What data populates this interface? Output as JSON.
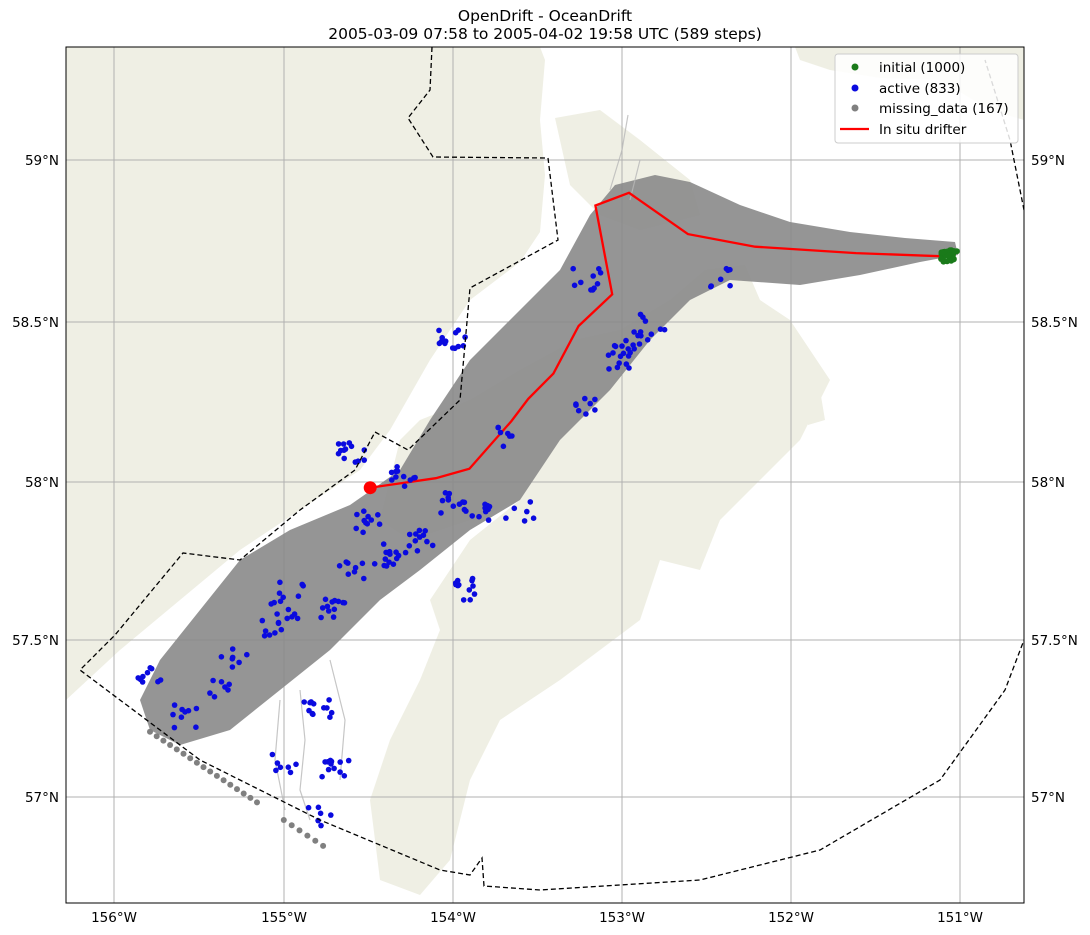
{
  "title": {
    "line1": "OpenDrift - OceanDrift",
    "line2": "2005-03-09 07:58 to 2005-04-02 19:58 UTC (589 steps)"
  },
  "axes": {
    "lon_labels": [
      "156°W",
      "155°W",
      "154°W",
      "153°W",
      "152°W",
      "151°W"
    ],
    "lat_labels": [
      "59°N",
      "58.5°N",
      "58°N",
      "57.5°N",
      "57°N"
    ]
  },
  "legend": {
    "location": "top-right",
    "items": [
      {
        "label": "initial (1000)",
        "color": "#1a7a1a",
        "kind": "marker"
      },
      {
        "label": "active (833)",
        "color": "#0a0adf",
        "kind": "marker"
      },
      {
        "label": "missing_data (167)",
        "color": "#808080",
        "kind": "marker"
      },
      {
        "label": "In situ drifter",
        "color": "#ff0000",
        "kind": "line"
      }
    ]
  },
  "colors": {
    "land": "#efefe4",
    "trajectories": "#a0a0a0",
    "initial": "#1a7a1a",
    "active": "#0a0adf",
    "missing": "#808080",
    "drifter": "#ff0000"
  },
  "chart_data": {
    "type": "scatter",
    "title": "OpenDrift - OceanDrift",
    "subtitle": "2005-03-09 07:58 to 2005-04-02 19:58 UTC (589 steps)",
    "xlim": [
      -156.3,
      -150.6
    ],
    "ylim": [
      56.68,
      59.38
    ],
    "grid": true,
    "series": [
      {
        "name": "initial (1000)",
        "center": [
          -151.05,
          58.72
        ]
      },
      {
        "name": "active (833)",
        "sample_points": [
          [
            -155.8,
            57.39
          ],
          [
            -155.6,
            57.27
          ],
          [
            -155.4,
            57.35
          ],
          [
            -155.3,
            57.45
          ],
          [
            -155.0,
            57.61
          ],
          [
            -155.05,
            57.56
          ],
          [
            -154.95,
            57.66
          ],
          [
            -154.7,
            57.6
          ],
          [
            -154.6,
            57.72
          ],
          [
            -154.4,
            57.78
          ],
          [
            -154.2,
            57.82
          ],
          [
            -154.5,
            57.88
          ],
          [
            -154.6,
            58.1
          ],
          [
            -154.3,
            58.03
          ],
          [
            -154.0,
            57.94
          ],
          [
            -153.8,
            57.9
          ],
          [
            -153.6,
            57.92
          ],
          [
            -153.9,
            57.67
          ],
          [
            -153.7,
            58.15
          ],
          [
            -153.2,
            58.25
          ],
          [
            -153.0,
            58.4
          ],
          [
            -152.9,
            58.45
          ],
          [
            -152.8,
            58.5
          ],
          [
            -154.0,
            58.45
          ],
          [
            -154.8,
            57.3
          ],
          [
            -154.7,
            57.1
          ],
          [
            -154.8,
            56.95
          ],
          [
            -155.0,
            57.12
          ],
          [
            -153.2,
            58.65
          ],
          [
            -152.4,
            58.65
          ]
        ]
      },
      {
        "name": "missing_data (167)",
        "edge_from": [
          -155.8,
          57.22
        ],
        "edge_to": [
          -154.77,
          56.86
        ]
      },
      {
        "name": "In situ drifter",
        "line": [
          [
            -151.1,
            58.72
          ],
          [
            -151.6,
            58.73
          ],
          [
            -152.2,
            58.75
          ],
          [
            -152.6,
            58.79
          ],
          [
            -152.95,
            58.92
          ],
          [
            -153.15,
            58.88
          ],
          [
            -153.05,
            58.6
          ],
          [
            -153.25,
            58.5
          ],
          [
            -153.4,
            58.35
          ],
          [
            -153.55,
            58.27
          ],
          [
            -153.65,
            58.2
          ],
          [
            -153.9,
            58.05
          ],
          [
            -154.1,
            58.02
          ],
          [
            -154.49,
            57.99
          ]
        ]
      }
    ]
  }
}
